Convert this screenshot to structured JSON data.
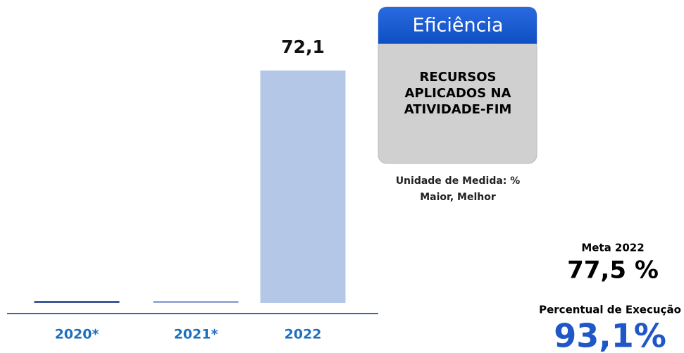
{
  "chart_data": {
    "type": "bar",
    "categories": [
      "2020*",
      "2021*",
      "2022"
    ],
    "values": [
      0,
      0,
      72.1
    ],
    "value_labels": [
      null,
      null,
      "72,1"
    ],
    "colors": [
      "#3d5a98",
      "#9aaad8",
      "#b4c7e7"
    ],
    "ylim": [
      0,
      80
    ]
  },
  "panel": {
    "header": "Eficiência",
    "indicator": [
      "RECURSOS",
      "APLICADOS NA",
      "ATIVIDADE-FIM"
    ],
    "unit": "Unidade de Medida: %",
    "direction": "Maior, Melhor",
    "target_label": "Meta 2022",
    "target_value": "77,5 %",
    "execution_label": "Percentual de Execução",
    "execution_value": "93,1%"
  }
}
